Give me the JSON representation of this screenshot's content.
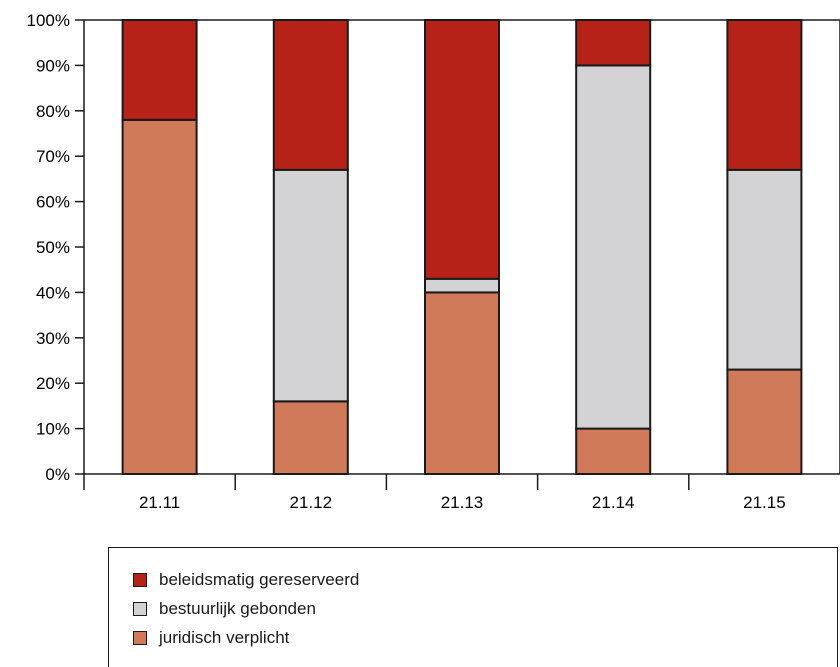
{
  "chart_data": {
    "type": "bar",
    "stacked": true,
    "categories": [
      "21.11",
      "21.12",
      "21.13",
      "21.14",
      "21.15"
    ],
    "series": [
      {
        "name": "juridisch verplicht",
        "color": "#d07a5a",
        "values": [
          78,
          16,
          40,
          10,
          23
        ]
      },
      {
        "name": "bestuurlijk gebonden",
        "color": "#d3d3d5",
        "values": [
          0,
          51,
          3,
          80,
          44
        ]
      },
      {
        "name": "beleidsmatig gereserveerd",
        "color": "#b62218",
        "values": [
          22,
          33,
          57,
          10,
          33
        ]
      }
    ],
    "ylim": [
      0,
      100
    ],
    "yticks": [
      "0%",
      "10%",
      "20%",
      "30%",
      "40%",
      "50%",
      "60%",
      "70%",
      "80%",
      "90%",
      "100%"
    ],
    "grid": false,
    "legend_position": "bottom",
    "legend_order": [
      "beleidsmatig gereserveerd",
      "bestuurlijk gebonden",
      "juridisch verplicht"
    ]
  }
}
